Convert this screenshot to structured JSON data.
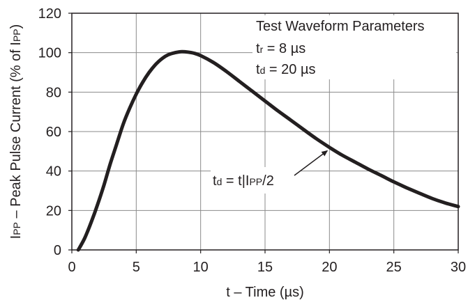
{
  "chart_data": {
    "type": "line",
    "xlabel": "t – Time (µs)",
    "ylabel": {
      "parts": [
        {
          "text": "I",
          "sub": false
        },
        {
          "text": "PP",
          "sub": true
        },
        {
          "text": " – Peak Pulse Current (% of I",
          "sub": false
        },
        {
          "text": "PP",
          "sub": true
        },
        {
          "text": ")",
          "sub": false
        }
      ]
    },
    "xlim": [
      0,
      30
    ],
    "ylim": [
      0,
      120
    ],
    "xticks": [
      0,
      5,
      10,
      15,
      20,
      25,
      30
    ],
    "yticks": [
      0,
      20,
      40,
      60,
      80,
      100,
      120
    ],
    "grid": true,
    "series": [
      {
        "color": "#231f20",
        "x": [
          0.5,
          1,
          1.5,
          2,
          2.5,
          3,
          3.5,
          4,
          4.5,
          5,
          5.5,
          6,
          6.5,
          7,
          7.5,
          8,
          8.5,
          9,
          9.5,
          10,
          11,
          12,
          13,
          14,
          15,
          16,
          17,
          18,
          19,
          20,
          21,
          22,
          23,
          24,
          25,
          26,
          27,
          28,
          29,
          30
        ],
        "y": [
          0,
          6,
          14,
          23,
          33,
          44,
          54,
          64,
          72,
          79,
          85,
          90,
          94,
          97,
          99,
          100,
          100.5,
          100.3,
          99.7,
          98.5,
          95,
          90.5,
          85.5,
          80.5,
          75.5,
          70.5,
          65.8,
          61,
          56.3,
          52,
          48,
          44.5,
          41,
          37.8,
          34.5,
          31.5,
          28.7,
          26,
          23.8,
          22
        ]
      }
    ],
    "legend_box": {
      "placement": "top-right",
      "title": "Test Waveform Parameters",
      "lines": [
        {
          "parts": [
            {
              "text": "t",
              "sub": false
            },
            {
              "text": "r",
              "sub": true
            },
            {
              "text": " = 8 µs",
              "sub": false
            }
          ]
        },
        {
          "parts": [
            {
              "text": "t",
              "sub": false
            },
            {
              "text": "d",
              "sub": true
            },
            {
              "text": " = 20 µs",
              "sub": false
            }
          ]
        }
      ]
    },
    "annotation": {
      "parts": [
        {
          "text": "t",
          "sub": false
        },
        {
          "text": "d",
          "sub": true
        },
        {
          "text": " = t|I",
          "sub": false
        },
        {
          "text": "PP",
          "sub": true
        },
        {
          "text": "/2",
          "sub": false
        }
      ],
      "arrow_to": {
        "x": 20,
        "y": 51
      }
    }
  }
}
